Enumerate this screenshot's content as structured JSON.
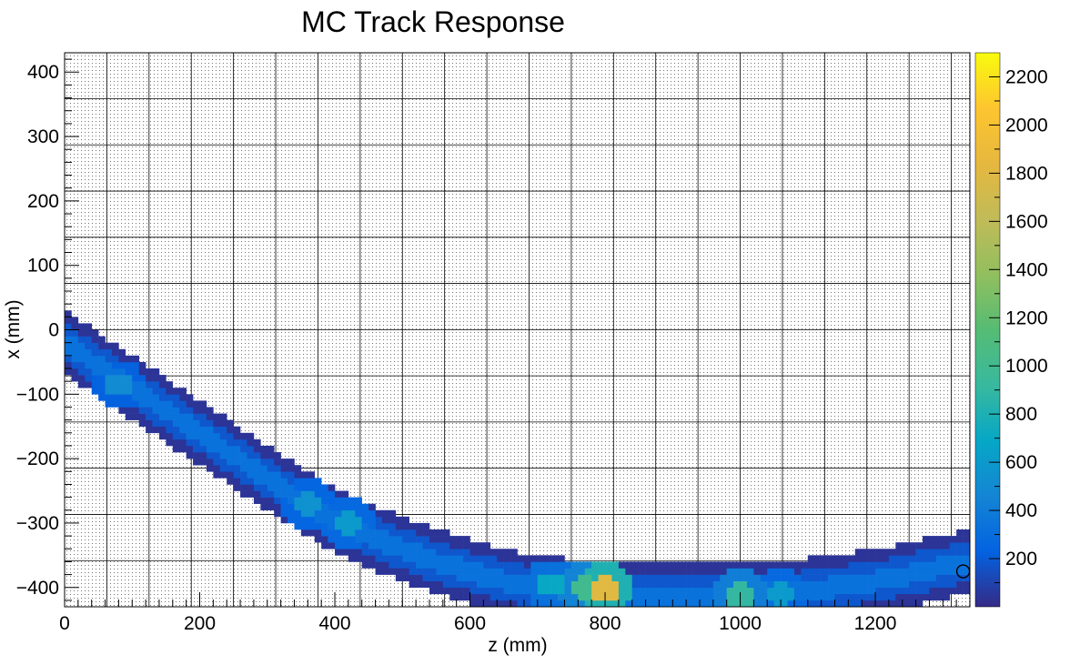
{
  "chart_data": {
    "type": "heatmap",
    "title": "MC Track Response",
    "xlabel": "z (mm)",
    "ylabel": "x (mm)",
    "xlim": [
      0,
      1340
    ],
    "ylim": [
      -430,
      430
    ],
    "x_ticks": [
      0,
      200,
      400,
      600,
      800,
      1000,
      1200
    ],
    "x_tick_labels": [
      "0",
      "200",
      "400",
      "600",
      "800",
      "1000",
      "1200"
    ],
    "y_ticks": [
      400,
      300,
      200,
      100,
      0,
      -100,
      -200,
      -300,
      -400
    ],
    "y_tick_labels": [
      "400",
      "300",
      "200",
      "100",
      "0",
      "−100",
      "−200",
      "−300",
      "−400"
    ],
    "zlim": [
      0,
      2300
    ],
    "z_ticks": [
      200,
      400,
      600,
      800,
      1000,
      1200,
      1400,
      1600,
      1800,
      2000,
      2200
    ],
    "z_tick_labels": [
      "200",
      "400",
      "600",
      "800",
      "1000",
      "1200",
      "1400",
      "1600",
      "1800",
      "2000",
      "2200"
    ],
    "colormap": "parula",
    "grid": true,
    "colorbar": "right",
    "track_centerline": {
      "z": [
        0,
        50,
        100,
        150,
        200,
        250,
        300,
        350,
        400,
        450,
        500,
        550,
        600,
        650,
        700,
        750,
        800,
        850,
        900,
        950,
        1000,
        1050,
        1100,
        1150,
        1200,
        1250,
        1300,
        1340
      ],
      "x": [
        -20,
        -55,
        -90,
        -125,
        -160,
        -195,
        -230,
        -265,
        -295,
        -320,
        -340,
        -360,
        -375,
        -390,
        -400,
        -406,
        -410,
        -413,
        -414,
        -413,
        -412,
        -410,
        -405,
        -398,
        -390,
        -380,
        -368,
        -360
      ]
    },
    "track_half_width_mm": 45,
    "track_typical_value": 150,
    "hotspots": [
      {
        "z": 80,
        "x": -85,
        "value": 500
      },
      {
        "z": 360,
        "x": -270,
        "value": 550
      },
      {
        "z": 420,
        "x": -300,
        "value": 600
      },
      {
        "z": 720,
        "x": -395,
        "value": 700
      },
      {
        "z": 770,
        "x": -400,
        "value": 1000
      },
      {
        "z": 800,
        "x": -402,
        "value": 1800
      },
      {
        "z": 1000,
        "x": -412,
        "value": 900
      },
      {
        "z": 1060,
        "x": -411,
        "value": 600
      }
    ],
    "marker": {
      "z": 1330,
      "x": -375,
      "shape": "open-circle"
    }
  }
}
